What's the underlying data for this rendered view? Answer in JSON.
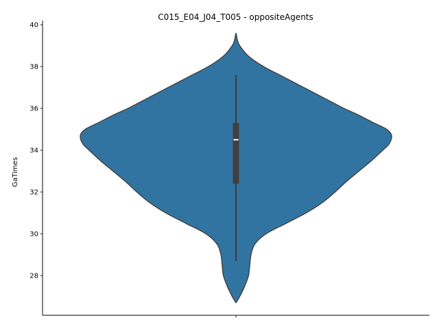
{
  "chart_data": {
    "type": "violin",
    "title": "C015_E04_J04_T005 - oppositeAgents",
    "xlabel": "",
    "ylabel": "GaTimes",
    "ylim": [
      26.1,
      40.2
    ],
    "yticks": [
      28,
      30,
      32,
      34,
      36,
      38,
      40
    ],
    "grid": false,
    "color": "#3274a1",
    "edge_color": "#3f3f3f",
    "box": {
      "min": 28.7,
      "q1": 32.4,
      "median": 34.5,
      "q3": 35.3,
      "max": 37.6
    },
    "density_profile": {
      "y": [
        26.7,
        27.0,
        27.5,
        28.0,
        28.5,
        29.0,
        29.5,
        30.0,
        30.5,
        31.0,
        31.5,
        32.0,
        32.5,
        33.0,
        33.5,
        34.0,
        34.3,
        34.7,
        35.0,
        35.3,
        35.7,
        36.0,
        36.5,
        37.0,
        37.5,
        38.0,
        38.5,
        39.0,
        39.3,
        39.6
      ],
      "half_width": [
        0.0,
        0.03,
        0.07,
        0.1,
        0.11,
        0.12,
        0.15,
        0.24,
        0.4,
        0.56,
        0.69,
        0.79,
        0.88,
        0.98,
        1.08,
        1.17,
        1.22,
        1.24,
        1.2,
        1.1,
        0.97,
        0.86,
        0.7,
        0.54,
        0.38,
        0.22,
        0.1,
        0.03,
        0.01,
        0.0
      ]
    }
  }
}
